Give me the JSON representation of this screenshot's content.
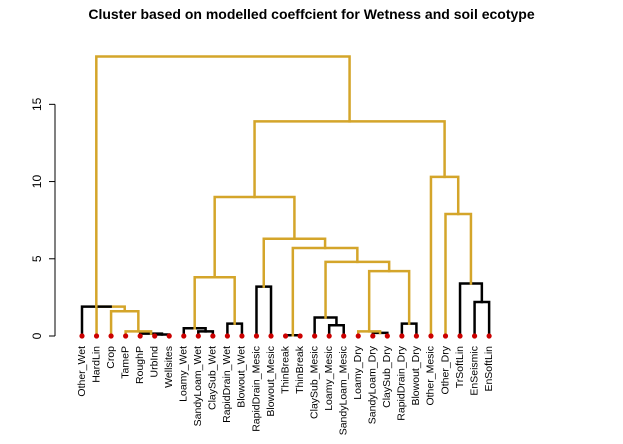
{
  "chart_data": {
    "type": "dendrogram",
    "title": "Cluster based on modelled coeffcient for Wetness and soil ecotype",
    "y_ticks": [
      0,
      5,
      10,
      15
    ],
    "ylim": [
      0,
      18
    ],
    "colors": {
      "clustered": "#D4A52A",
      "unclustered": "#000000",
      "leaf": "#CC0000"
    },
    "leaves": [
      "Other_Wet",
      "HardLin",
      "Crop",
      "TameP",
      "RoughP",
      "UrbInd",
      "Wellsites",
      "Loamy_Wet",
      "SandyLoam_Wet",
      "ClaySub_Wet",
      "RapidDrain_Wet",
      "Blowout_Wet",
      "RapidDrain_Mesic",
      "Blowout_Mesic",
      "ThinBreak",
      "ThinBreak",
      "ClaySub_Mesic",
      "Loamy_Mesic",
      "SandyLoam_Mesic",
      "Loamy_Dry",
      "SandyLoam_Dry",
      "ClaySub_Dry",
      "RapidDrain_Dry",
      "Blowout_Dry",
      "Other_Mesic",
      "Other_Dry",
      "TrSoftLin",
      "EnSeismic",
      "EnSoftLin"
    ],
    "merges": [
      {
        "a": -6,
        "b": -7,
        "h": 0.1,
        "c": "k"
      },
      {
        "a": -5,
        "b": 1,
        "h": 0.15,
        "c": "k"
      },
      {
        "a": -4,
        "b": 2,
        "h": 0.3,
        "c": "y"
      },
      {
        "a": -3,
        "b": 3,
        "h": 1.6,
        "c": "y"
      },
      {
        "a": -2,
        "b": 4,
        "h": 1.9,
        "c": "y"
      },
      {
        "a": -1,
        "b": 5,
        "h": 1.9,
        "c": "k"
      },
      {
        "a": -9,
        "b": -10,
        "h": 0.3,
        "c": "k"
      },
      {
        "a": -8,
        "b": 7,
        "h": 0.5,
        "c": "k"
      },
      {
        "a": -11,
        "b": -12,
        "h": 0.8,
        "c": "k"
      },
      {
        "a": 8,
        "b": 9,
        "h": 3.8,
        "c": "y"
      },
      {
        "a": -13,
        "b": -14,
        "h": 3.2,
        "c": "k"
      },
      {
        "a": -15,
        "b": -16,
        "h": 0.05,
        "c": "k"
      },
      {
        "a": -18,
        "b": -19,
        "h": 0.7,
        "c": "k"
      },
      {
        "a": -17,
        "b": 13,
        "h": 1.2,
        "c": "k"
      },
      {
        "a": -21,
        "b": -22,
        "h": 0.2,
        "c": "k"
      },
      {
        "a": -20,
        "b": 15,
        "h": 0.3,
        "c": "y"
      },
      {
        "a": -23,
        "b": -24,
        "h": 0.8,
        "c": "k"
      },
      {
        "a": 16,
        "b": 17,
        "h": 4.2,
        "c": "y"
      },
      {
        "a": 14,
        "b": 18,
        "h": 4.8,
        "c": "y"
      },
      {
        "a": 12,
        "b": 19,
        "h": 5.7,
        "c": "y"
      },
      {
        "a": 11,
        "b": 20,
        "h": 6.3,
        "c": "y"
      },
      {
        "a": 10,
        "b": 21,
        "h": 9.0,
        "c": "y"
      },
      {
        "a": -28,
        "b": -29,
        "h": 2.2,
        "c": "k"
      },
      {
        "a": -27,
        "b": 23,
        "h": 3.4,
        "c": "k"
      },
      {
        "a": -26,
        "b": 24,
        "h": 7.9,
        "c": "y"
      },
      {
        "a": -25,
        "b": 25,
        "h": 10.3,
        "c": "y"
      },
      {
        "a": 22,
        "b": 26,
        "h": 13.9,
        "c": "y"
      },
      {
        "a": 6,
        "b": 27,
        "h": 18.1,
        "c": "y"
      }
    ]
  }
}
